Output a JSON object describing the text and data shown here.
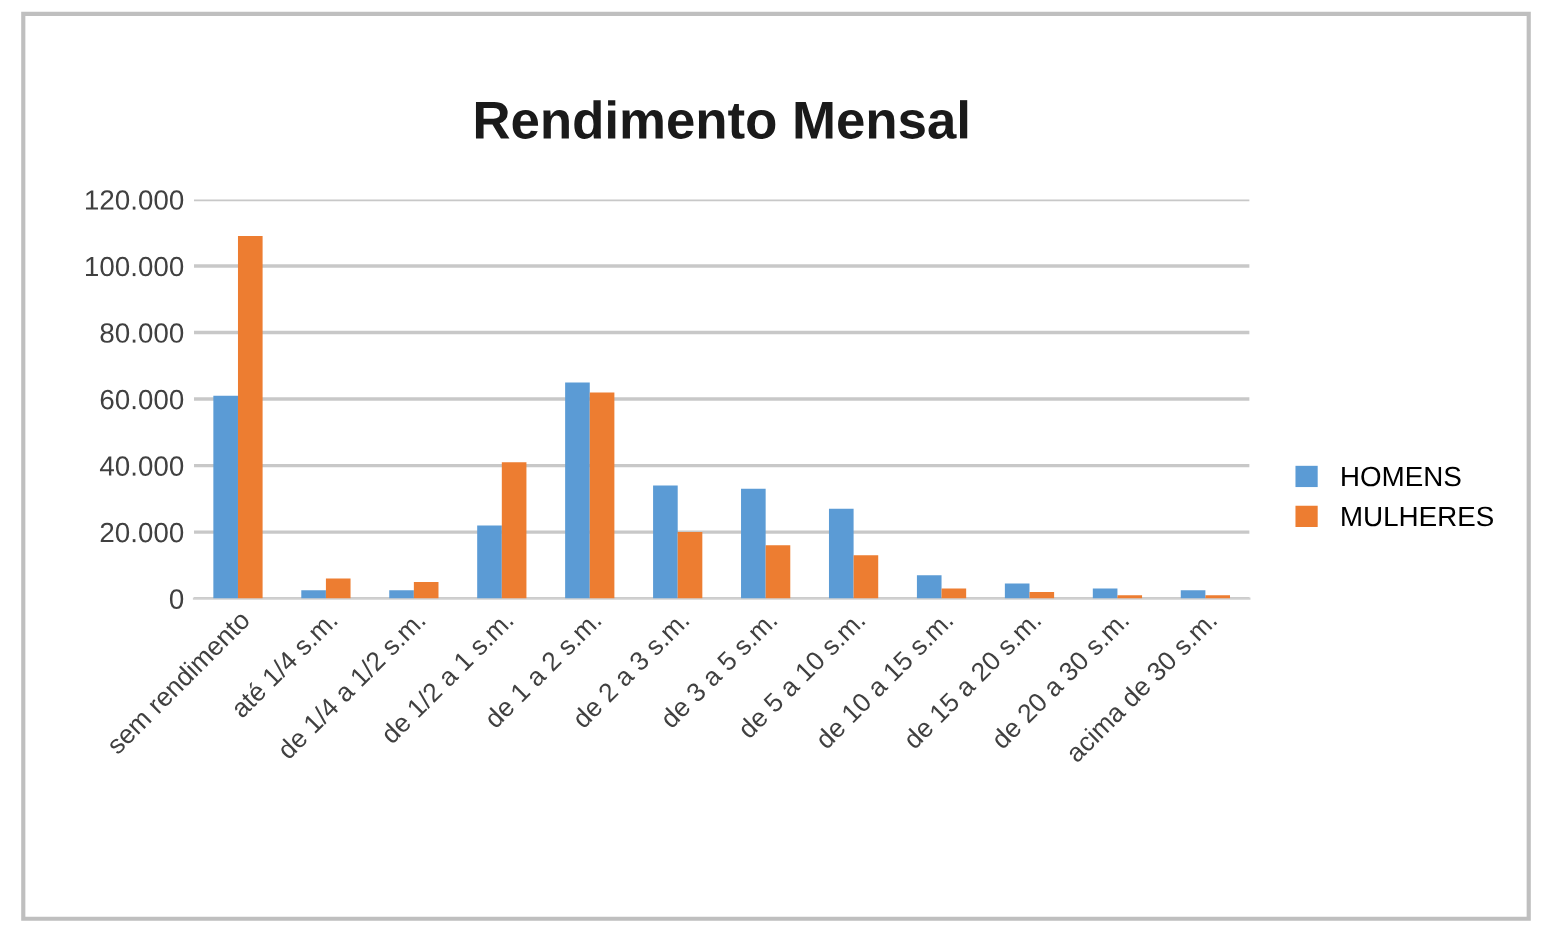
{
  "chart_data": {
    "type": "bar",
    "title": "Rendimento Mensal",
    "categories": [
      "sem rendimento",
      "até 1/4 s.m.",
      "de 1/4 a 1/2 s.m.",
      "de 1/2 a 1 s.m.",
      "de 1 a 2 s.m.",
      "de 2 a 3 s.m.",
      "de 3 a 5 s.m.",
      "de 5 a 10 s.m.",
      "de 10 a 15 s.m.",
      "de 15 a 20 s.m.",
      "de 20 a 30 s.m.",
      "acima de 30 s.m."
    ],
    "series": [
      {
        "name": "HOMENS",
        "color": "#5b9bd5",
        "values": [
          61000,
          2500,
          2500,
          22000,
          65000,
          34000,
          33000,
          27000,
          7000,
          4500,
          3000,
          2500
        ]
      },
      {
        "name": "MULHERES",
        "color": "#ed7d31",
        "values": [
          109000,
          6000,
          5000,
          41000,
          62000,
          20000,
          16000,
          13000,
          3000,
          2000,
          1000,
          1000
        ]
      }
    ],
    "ylim": [
      0,
      120000
    ],
    "yticks": [
      0,
      {
        "value": 20000,
        "label": "20.000"
      },
      {
        "value": 40000,
        "label": "40.000"
      },
      {
        "value": 60000,
        "label": "60.000"
      },
      {
        "value": 80000,
        "label": "80.000"
      },
      {
        "value": 100000,
        "label": "100.000"
      },
      {
        "value": 120000,
        "label": "120.000"
      }
    ],
    "grid": "y",
    "legend": "right"
  }
}
